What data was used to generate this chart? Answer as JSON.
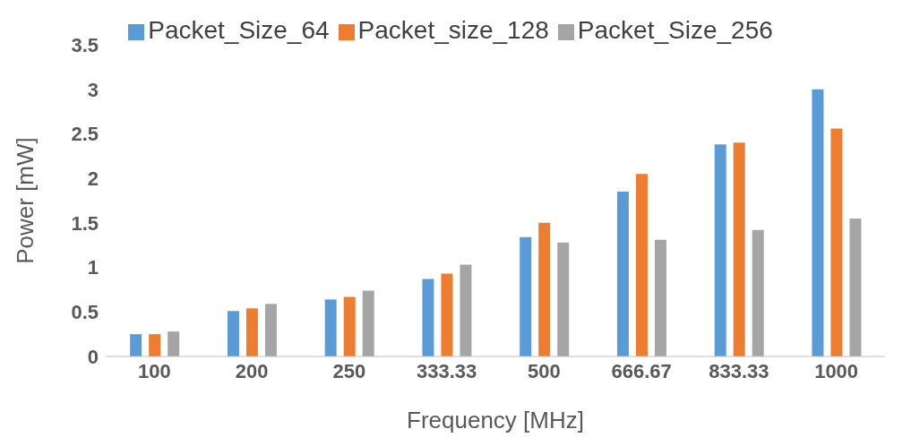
{
  "chart_data": {
    "type": "bar",
    "xlabel": "Frequency [MHz]",
    "ylabel": "Power [mW]",
    "categories": [
      "100",
      "200",
      "250",
      "333.33",
      "500",
      "666.67",
      "833.33",
      "1000"
    ],
    "series": [
      {
        "name": "Packet_Size_64",
        "color": "#5b9bd5",
        "values": [
          0.25,
          0.51,
          0.64,
          0.87,
          1.34,
          1.85,
          2.38,
          3.0
        ]
      },
      {
        "name": "Packet_size_128",
        "color": "#ed7d31",
        "values": [
          0.25,
          0.54,
          0.67,
          0.93,
          1.5,
          2.05,
          2.4,
          2.56
        ]
      },
      {
        "name": "Packet_Size_256",
        "color": "#a5a5a5",
        "values": [
          0.28,
          0.59,
          0.74,
          1.03,
          1.28,
          1.31,
          1.42,
          1.55
        ]
      }
    ],
    "ylim": [
      0,
      3.5
    ],
    "yticks": [
      0,
      0.5,
      1,
      1.5,
      2,
      2.5,
      3,
      3.5
    ],
    "grid": false,
    "legend": "top"
  }
}
